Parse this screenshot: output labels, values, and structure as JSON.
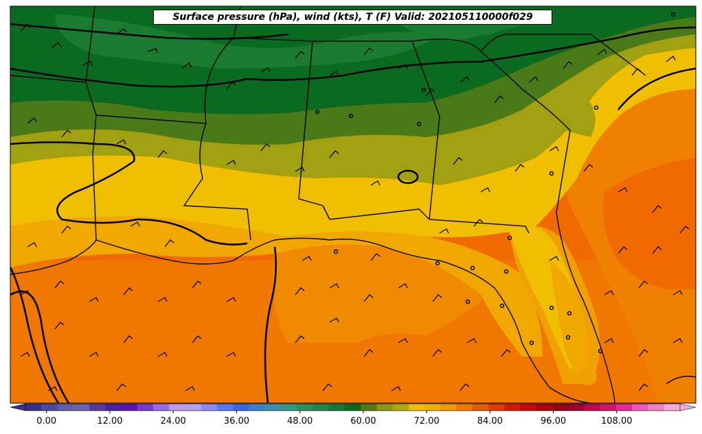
{
  "title": "Surface pressure (hPa), wind (kts), T (F) Valid: 202105110000f029",
  "colorbar": {
    "min": -4,
    "max": 120,
    "step": 3,
    "tick_labels": [
      "0.00",
      "12.00",
      "24.00",
      "36.00",
      "48.00",
      "60.00",
      "72.00",
      "84.00",
      "96.00",
      "108.00"
    ],
    "tick_values": [
      0,
      12,
      24,
      36,
      48,
      60,
      72,
      84,
      96,
      108
    ],
    "colors": [
      "#3a2f8f",
      "#4a4a9c",
      "#5e5ea8",
      "#6a64b0",
      "#5b3aa0",
      "#4f1fa0",
      "#5a14b0",
      "#7a3ad0",
      "#9a6ae0",
      "#c09ae8",
      "#b6a0f0",
      "#8a8af0",
      "#5a78f0",
      "#3a68e0",
      "#3a80c8",
      "#3a90b0",
      "#2e9a80",
      "#2a9060",
      "#1e8848",
      "#157a38",
      "#0e6a18",
      "#557a10",
      "#8a9a10",
      "#b0a808",
      "#f0c000",
      "#f0b000",
      "#f09a00",
      "#f07a00",
      "#e85a00",
      "#e03a00",
      "#d81800",
      "#c80808",
      "#b00010",
      "#980018",
      "#a00030",
      "#c00850",
      "#d81070",
      "#e82898",
      "#f058b8",
      "#f080c8",
      "#f8a8d8"
    ]
  },
  "map": {
    "region": "Southeastern United States",
    "field_colors": {
      "dark_green": "#0a6a20",
      "green": "#1a7a30",
      "olive_green": "#4a7a18",
      "olive": "#a0a010",
      "yellow": "#f0c000",
      "light_orange": "#f0a800",
      "orange": "#f08000",
      "deep_orange": "#f06a00"
    }
  }
}
